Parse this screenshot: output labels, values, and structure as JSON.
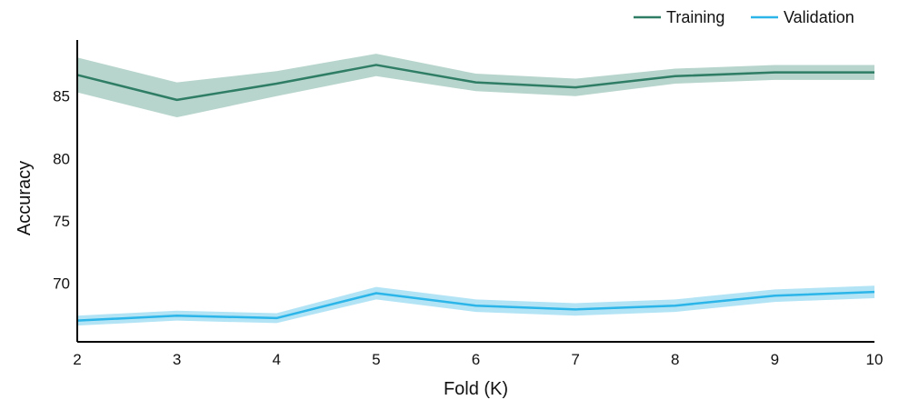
{
  "chart_data": {
    "type": "line",
    "title": "",
    "xlabel": "Fold (K)",
    "ylabel": "Accuracy",
    "x": [
      2,
      3,
      4,
      5,
      6,
      7,
      8,
      9,
      10
    ],
    "xlim": [
      2,
      10
    ],
    "ylim": [
      65.3,
      89.5
    ],
    "yticks": [
      70,
      75,
      80,
      85
    ],
    "grid": false,
    "legend_position": "top-right",
    "series": [
      {
        "name": "Training",
        "color": "#2e7d64",
        "band_color": "#b7d5cc",
        "values": [
          86.7,
          84.7,
          86.0,
          87.5,
          86.1,
          85.7,
          86.6,
          86.9,
          86.9
        ],
        "lower": [
          85.3,
          83.3,
          85.0,
          86.6,
          85.4,
          85.0,
          86.0,
          86.3,
          86.3
        ],
        "upper": [
          88.1,
          86.1,
          87.0,
          88.4,
          86.8,
          86.4,
          87.2,
          87.5,
          87.5
        ]
      },
      {
        "name": "Validation",
        "color": "#2bb5e8",
        "band_color": "#b3e4f5",
        "values": [
          67.0,
          67.4,
          67.2,
          69.2,
          68.2,
          67.9,
          68.2,
          69.0,
          69.3
        ],
        "lower": [
          66.6,
          67.0,
          66.8,
          68.7,
          67.7,
          67.4,
          67.7,
          68.5,
          68.8
        ],
        "upper": [
          67.4,
          67.8,
          67.6,
          69.7,
          68.7,
          68.4,
          68.7,
          69.5,
          69.8
        ]
      }
    ]
  }
}
